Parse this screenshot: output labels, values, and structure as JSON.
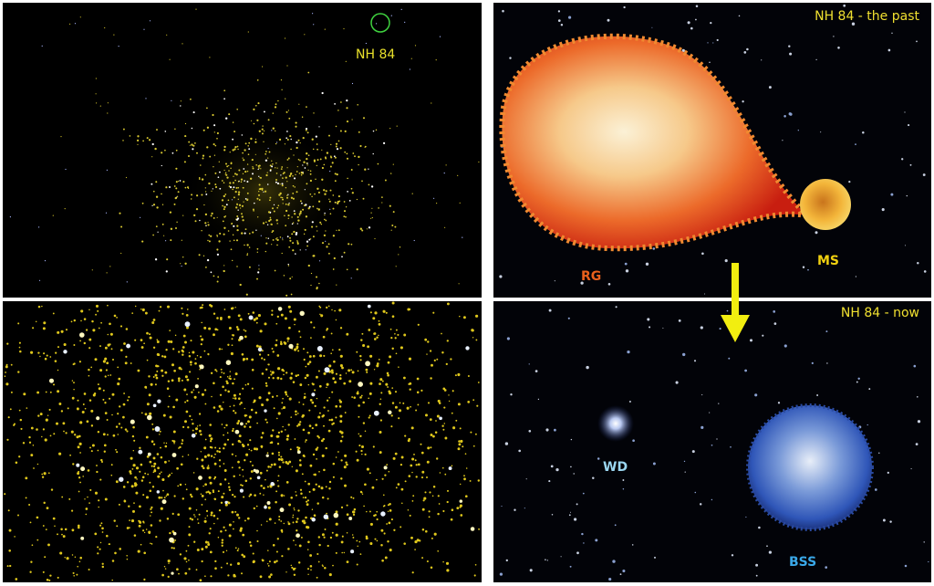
{
  "top_left": {
    "label": "NH 84"
  },
  "top_right": {
    "title": "NH 84 - the past",
    "giant": "RG",
    "companion": "MS"
  },
  "bottom_right": {
    "title": "NH 84 - now",
    "dwarf": "WD",
    "straggler": "BSS"
  }
}
